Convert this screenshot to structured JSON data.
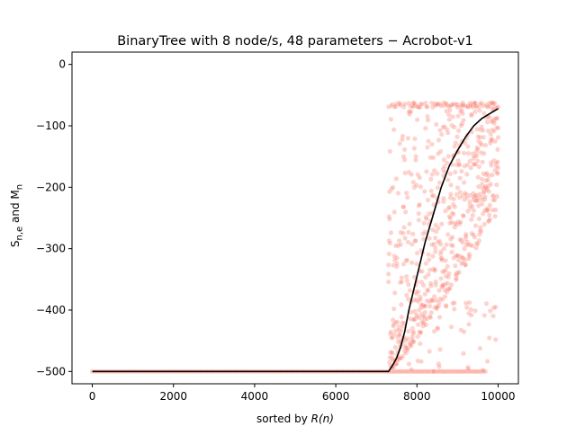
{
  "chart_data": {
    "type": "scatter",
    "title": "BinaryTree with 8 node/s, 48 parameters − Acrobot-v1",
    "xlabel_prefix": "sorted by ",
    "xlabel_var": "R(n)",
    "ylabel_html": "S<sub>n,e</sub> and M<sub>n</sub>",
    "xlim": [
      -500,
      10500
    ],
    "ylim": [
      -520,
      20
    ],
    "x_ticks": [
      0,
      2000,
      4000,
      6000,
      8000,
      10000
    ],
    "x_tick_labels": [
      "0",
      "2000",
      "4000",
      "6000",
      "8000",
      "10000"
    ],
    "y_ticks": [
      0,
      -100,
      -200,
      -300,
      -400,
      -500
    ],
    "y_tick_labels": [
      "0",
      "−100",
      "−200",
      "−300",
      "−400",
      "−500"
    ],
    "grid": false,
    "series": [
      {
        "kind": "scatter",
        "color": "#fa8072",
        "description_points": "per-episode scores S(n,e): flat at -500 up to about n=7300, then spread between about -500 and -62 from n=7300 to n=10000",
        "flat_until": 7300,
        "n_max": 10000,
        "floor": -500,
        "ceiling": -62
      },
      {
        "kind": "line",
        "color": "#000000",
        "x": [
          0,
          7000,
          7300,
          7400,
          7500,
          7600,
          7700,
          7800,
          8000,
          8200,
          8400,
          8600,
          8800,
          9000,
          9200,
          9400,
          9600,
          9800,
          9950,
          10000
        ],
        "y": [
          -500,
          -500,
          -500,
          -490,
          -478,
          -460,
          -435,
          -400,
          -345,
          -290,
          -245,
          -200,
          -165,
          -140,
          -118,
          -100,
          -88,
          -80,
          -74,
          -72
        ]
      }
    ]
  }
}
